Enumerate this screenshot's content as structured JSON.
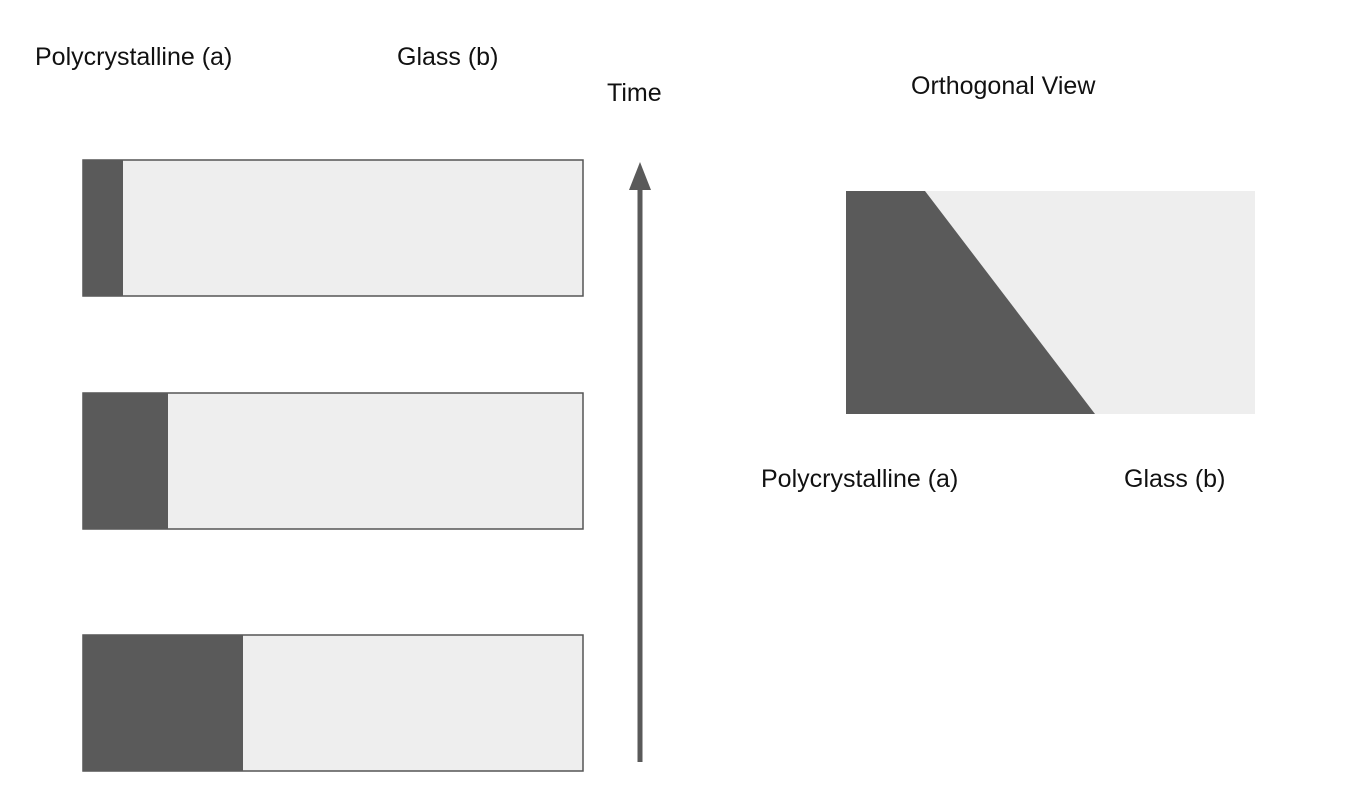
{
  "labels": {
    "polycrystalline_top": "Polycrystalline (a)",
    "glass_top": "Glass (b)",
    "time": "Time",
    "orthogonal_view": "Orthogonal View",
    "polycrystalline_bottom": "Polycrystalline (a)",
    "glass_bottom": "Glass (b)"
  },
  "colors": {
    "polycrystalline": "#5a5a5a",
    "glass": "#eeeeee",
    "outline": "#555555",
    "arrow": "#5a5a5a"
  },
  "time_snapshots": [
    {
      "polycrystalline_fraction": 0.08
    },
    {
      "polycrystalline_fraction": 0.17
    },
    {
      "polycrystalline_fraction": 0.32
    }
  ]
}
